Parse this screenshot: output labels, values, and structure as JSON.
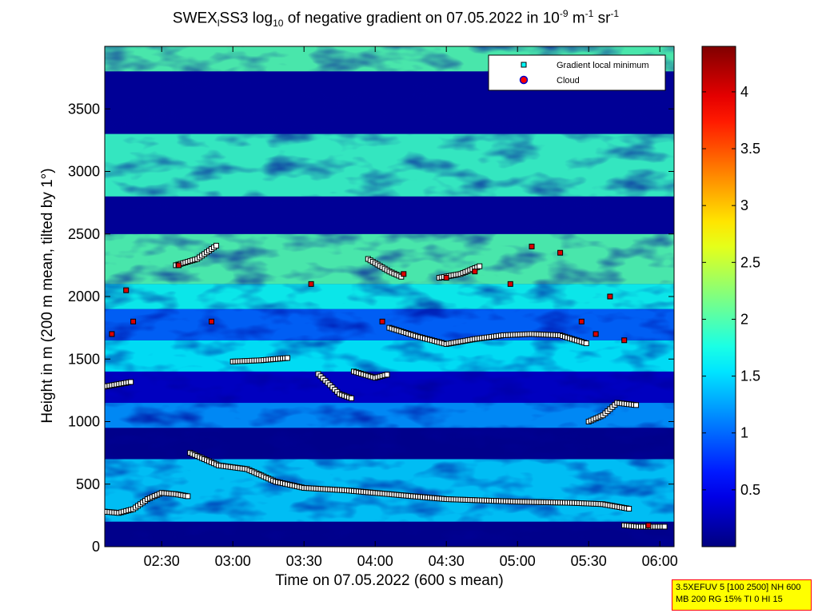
{
  "title": {
    "prefix": "SWEX",
    "sub1": "l",
    "mid": "SS3 log",
    "sub2": "10",
    "text": " of negative gradient on 07.05.2022 in 10",
    "sup1": "-9",
    "unit_m": " m",
    "sup2": "-1",
    "unit_sr": " sr",
    "sup3": "-1"
  },
  "info_box": {
    "line1": "3.5XEFUV 5 [100 2500] NH 600",
    "line2": "MB 200 RG 15% TI 0 HI 15"
  },
  "chart_data": {
    "type": "heatmap",
    "xlabel": "Time on 07.05.2022 (600 s mean)",
    "ylabel": "Height in m (200 m mean, tilted by 1°)",
    "x_ticks": [
      "02:30",
      "03:00",
      "03:30",
      "04:00",
      "04:30",
      "05:00",
      "05:30",
      "06:00"
    ],
    "x_tick_hours": [
      2.5,
      3.0,
      3.5,
      4.0,
      4.5,
      5.0,
      5.5,
      6.0
    ],
    "xlim_hours": [
      2.1,
      6.1
    ],
    "y_ticks": [
      "0",
      "500",
      "1000",
      "1500",
      "2000",
      "2500",
      "3000",
      "3500"
    ],
    "y_tick_values": [
      0,
      500,
      1000,
      1500,
      2000,
      2500,
      3000,
      3500
    ],
    "ylim": [
      0,
      4000
    ],
    "colorbar": {
      "ticks": [
        "0.5",
        "1",
        "1.5",
        "2",
        "2.5",
        "3",
        "3.5",
        "4"
      ],
      "tick_values": [
        0.5,
        1,
        1.5,
        2,
        2.5,
        3,
        3.5,
        4
      ],
      "range": [
        0,
        4.4
      ],
      "colormap": "jet"
    },
    "legend": {
      "position": "top-right",
      "entries": [
        {
          "label": "Gradient local minimum",
          "marker": "square",
          "color": "#00ffff"
        },
        {
          "label": "Cloud",
          "marker": "circle",
          "color": "#ff0000"
        }
      ]
    },
    "layers": [
      {
        "y0": 200,
        "y1": 700,
        "v": 1.45
      },
      {
        "y0": 700,
        "y1": 950,
        "v": 0.05
      },
      {
        "y0": 950,
        "y1": 1150,
        "v": 1.2
      },
      {
        "y0": 1150,
        "y1": 1400,
        "v": 0.3
      },
      {
        "y0": 1400,
        "y1": 1650,
        "v": 1.6
      },
      {
        "y0": 1650,
        "y1": 1900,
        "v": 1.0
      },
      {
        "y0": 1900,
        "y1": 2100,
        "v": 1.7
      },
      {
        "y0": 2100,
        "y1": 2500,
        "v": 2.0
      },
      {
        "y0": 2500,
        "y1": 2800,
        "v": 0.1
      },
      {
        "y0": 2800,
        "y1": 3300,
        "v": 1.9
      },
      {
        "y0": 3300,
        "y1": 3800,
        "v": 0.1
      },
      {
        "y0": 3800,
        "y1": 4000,
        "v": 2.0
      }
    ],
    "minimum_tracks": [
      {
        "x": [
          2.1,
          2.2,
          2.3,
          2.4,
          2.5,
          2.6,
          2.7
        ],
        "y": [
          280,
          270,
          300,
          380,
          430,
          420,
          400
        ]
      },
      {
        "x": [
          2.7,
          2.9,
          3.1,
          3.3,
          3.5,
          3.8,
          4.1,
          4.5,
          5.0,
          5.4,
          5.6,
          5.8
        ],
        "y": [
          750,
          650,
          620,
          520,
          470,
          450,
          420,
          380,
          360,
          350,
          340,
          300
        ]
      },
      {
        "x": [
          5.75,
          5.85,
          5.95,
          6.05
        ],
        "y": [
          170,
          160,
          160,
          160
        ]
      },
      {
        "x": [
          2.1,
          2.2,
          2.3
        ],
        "y": [
          1280,
          1300,
          1320
        ]
      },
      {
        "x": [
          2.6,
          2.75,
          2.9
        ],
        "y": [
          2250,
          2300,
          2420
        ]
      },
      {
        "x": [
          3.85,
          4.0,
          4.1
        ],
        "y": [
          1400,
          1350,
          1380
        ]
      },
      {
        "x": [
          4.1,
          4.3,
          4.5,
          4.7,
          4.9,
          5.1,
          5.3,
          5.5
        ],
        "y": [
          1750,
          1680,
          1620,
          1660,
          1690,
          1700,
          1690,
          1620
        ]
      },
      {
        "x": [
          5.5,
          5.6,
          5.7,
          5.85
        ],
        "y": [
          1000,
          1050,
          1150,
          1130
        ]
      },
      {
        "x": [
          3.0,
          3.2,
          3.4
        ],
        "y": [
          1480,
          1490,
          1510
        ]
      },
      {
        "x": [
          3.95,
          4.1,
          4.2
        ],
        "y": [
          2300,
          2200,
          2150
        ]
      },
      {
        "x": [
          4.45,
          4.6,
          4.75
        ],
        "y": [
          2150,
          2180,
          2250
        ]
      },
      {
        "x": [
          3.6,
          3.75,
          3.85
        ],
        "y": [
          1380,
          1220,
          1180
        ]
      }
    ],
    "cloud_points": [
      {
        "x": 2.15,
        "y": 1700
      },
      {
        "x": 2.25,
        "y": 2050
      },
      {
        "x": 2.3,
        "y": 1800
      },
      {
        "x": 2.62,
        "y": 2250
      },
      {
        "x": 2.85,
        "y": 1800
      },
      {
        "x": 3.55,
        "y": 2100
      },
      {
        "x": 4.05,
        "y": 1800
      },
      {
        "x": 4.2,
        "y": 2180
      },
      {
        "x": 4.5,
        "y": 2150
      },
      {
        "x": 4.7,
        "y": 2200
      },
      {
        "x": 4.95,
        "y": 2100
      },
      {
        "x": 5.1,
        "y": 2400
      },
      {
        "x": 5.3,
        "y": 2350
      },
      {
        "x": 5.45,
        "y": 1800
      },
      {
        "x": 5.55,
        "y": 1700
      },
      {
        "x": 5.65,
        "y": 2000
      },
      {
        "x": 5.75,
        "y": 1650
      },
      {
        "x": 5.92,
        "y": 170
      }
    ]
  }
}
